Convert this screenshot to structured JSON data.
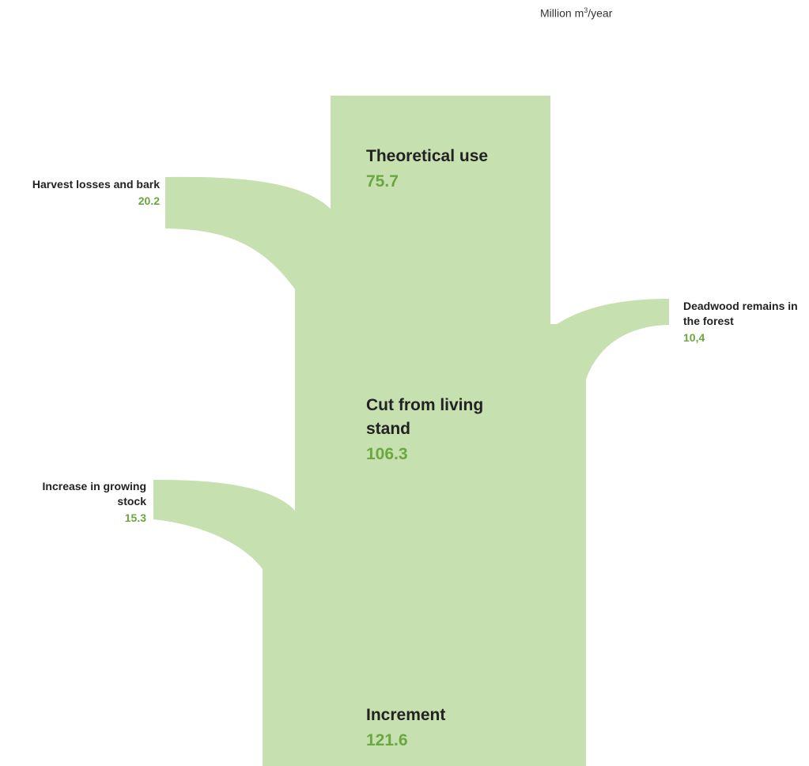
{
  "unit": {
    "prefix": "Million m",
    "superscript": "3",
    "suffix": "/year"
  },
  "colors": {
    "flow": "#c6e0b0",
    "value_text": "#6aa83f",
    "label_text": "#222222"
  },
  "nodes": {
    "theoretical_use": {
      "label": "Theoretical use",
      "value": "75.7"
    },
    "cut_from_living_stand": {
      "label": "Cut from living stand",
      "value": "106.3"
    },
    "increment": {
      "label": "Increment",
      "value": "121.6"
    }
  },
  "branches": {
    "harvest_losses": {
      "label": "Harvest losses and bark",
      "value": "20.2"
    },
    "deadwood": {
      "label": "Deadwood remains in the forest",
      "value": "10,4"
    },
    "increase_growing_stock": {
      "label": "Increase in growing stock",
      "value": "15.3"
    }
  }
}
